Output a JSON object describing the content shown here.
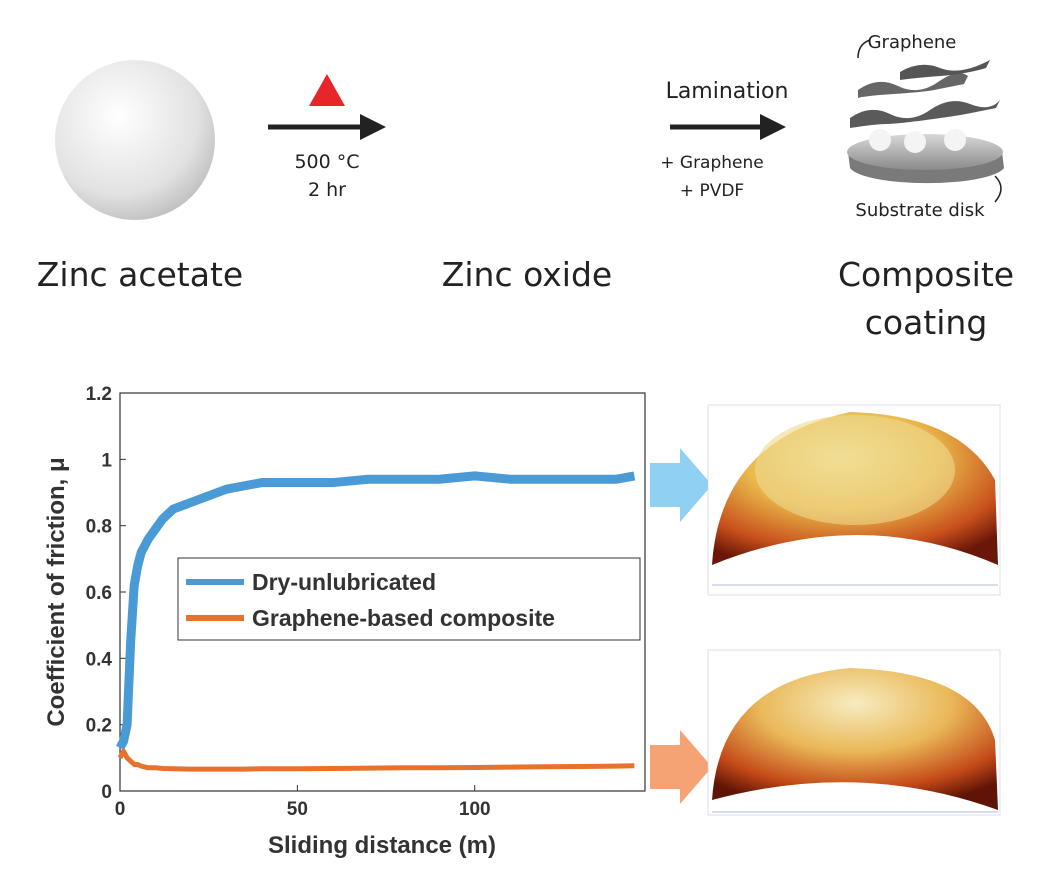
{
  "diagram": {
    "steps": [
      "Zinc acetate",
      "Zinc oxide",
      "Composite",
      "coating"
    ],
    "arrow1": {
      "top": "500 °C",
      "bottom": "2 hr"
    },
    "arrow2": {
      "top": "Lamination",
      "lines": [
        "+ Graphene",
        "+ PVDF"
      ]
    },
    "illustration": {
      "graphene": "Graphene",
      "substrate": "Substrate disk"
    }
  },
  "chart_data": {
    "type": "line",
    "xlabel": "Sliding distance (m)",
    "ylabel": "Coefficient of friction, μ",
    "x": [
      0,
      1,
      2,
      3,
      4,
      5,
      6,
      8,
      10,
      12,
      15,
      20,
      25,
      30,
      35,
      40,
      50,
      60,
      70,
      80,
      90,
      100,
      110,
      120,
      130,
      140,
      145
    ],
    "series": [
      {
        "name": "Dry-unlubricated",
        "color": "#4a9ad6",
        "values": [
          0.13,
          0.15,
          0.2,
          0.45,
          0.62,
          0.68,
          0.72,
          0.76,
          0.79,
          0.82,
          0.85,
          0.87,
          0.89,
          0.91,
          0.92,
          0.93,
          0.93,
          0.93,
          0.94,
          0.94,
          0.94,
          0.95,
          0.94,
          0.94,
          0.94,
          0.94,
          0.95
        ]
      },
      {
        "name": "Graphene-based composite",
        "color": "#e8722c",
        "values": [
          0.1,
          0.12,
          0.1,
          0.09,
          0.08,
          0.08,
          0.075,
          0.07,
          0.07,
          0.068,
          0.067,
          0.066,
          0.066,
          0.066,
          0.066,
          0.067,
          0.067,
          0.068,
          0.069,
          0.07,
          0.07,
          0.071,
          0.072,
          0.073,
          0.074,
          0.075,
          0.076
        ]
      }
    ],
    "xlim": [
      0,
      148
    ],
    "ylim": [
      0,
      1.2
    ],
    "xticks": [
      0,
      50,
      100
    ],
    "yticks": [
      0,
      0.2,
      0.4,
      0.6,
      0.8,
      1,
      1.2
    ]
  }
}
